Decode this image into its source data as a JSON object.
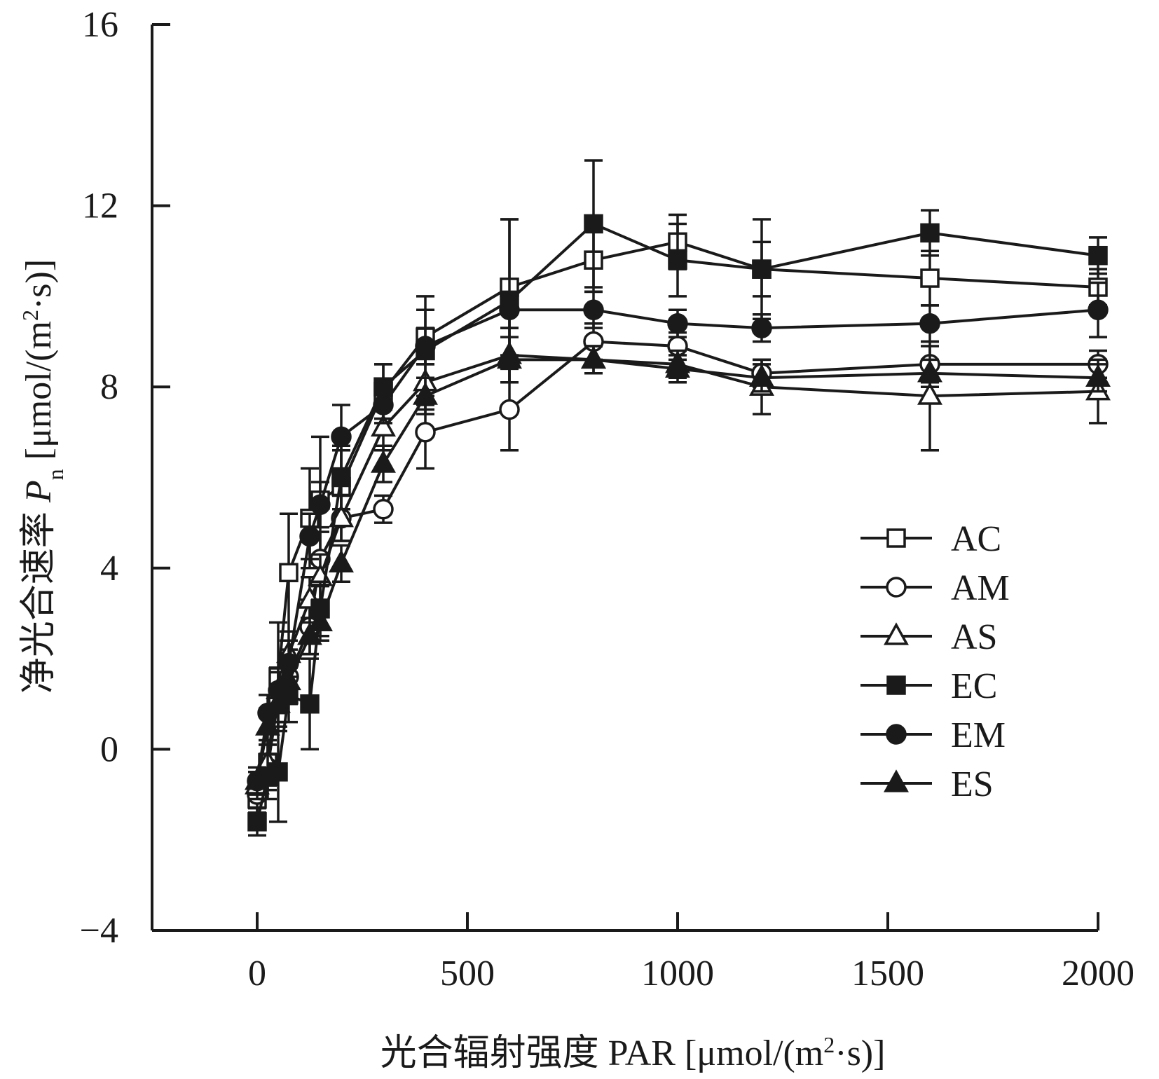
{
  "chart_data": {
    "type": "line",
    "title": "",
    "xlabel": "光合辐射强度 PAR [μmol/(m²·s)]",
    "xlabel_parts": {
      "main": "光合辐射强度 PAR [μmol/(m",
      "sup": "2",
      "tail": "·s)]"
    },
    "ylabel": "净光合速率 Pn [μmol/(m²·s)]",
    "ylabel_parts": {
      "main": "净光合速率 ",
      "var": "P",
      "sub": "n",
      "unit": " [μmol/(m",
      "sup": "2",
      "tail": "·s)]"
    },
    "xlim": [
      -250,
      2000
    ],
    "ylim": [
      -4,
      16
    ],
    "xticks": [
      0,
      500,
      1000,
      1500,
      2000
    ],
    "xtick_labels": [
      "0",
      "500",
      "1000",
      "1500",
      "2000"
    ],
    "yticks": [
      -4,
      0,
      4,
      8,
      12,
      16
    ],
    "ytick_labels": [
      "−4",
      "0",
      "4",
      "8",
      "12",
      "16"
    ],
    "grid": false,
    "legend_position": "right-middle",
    "series": [
      {
        "name": "AC",
        "marker": "square",
        "filled": false,
        "x": [
          0,
          25,
          50,
          75,
          125,
          150,
          200,
          300,
          400,
          600,
          800,
          1000,
          1200,
          1600,
          2000
        ],
        "y": [
          -1.1,
          -0.3,
          1.6,
          3.9,
          5.1,
          5.5,
          5.8,
          7.9,
          9.1,
          10.2,
          10.8,
          11.2,
          10.6,
          10.4,
          10.2
        ],
        "err": [
          0.3,
          0.5,
          1.2,
          1.3,
          1.1,
          1.4,
          0.8,
          0.6,
          0.6,
          1.5,
          0.7,
          0.6,
          0.6,
          0.6,
          0.4
        ]
      },
      {
        "name": "AM",
        "marker": "circle",
        "filled": false,
        "x": [
          0,
          25,
          50,
          75,
          125,
          150,
          200,
          300,
          400,
          600,
          800,
          1000,
          1200,
          1600,
          2000
        ],
        "y": [
          -1.0,
          -0.4,
          1.1,
          1.6,
          2.7,
          4.2,
          5.1,
          5.3,
          7.0,
          7.5,
          9.0,
          8.9,
          8.3,
          8.5,
          8.5
        ],
        "err": [
          0.3,
          0.5,
          0.6,
          0.6,
          0.6,
          0.6,
          0.5,
          0.3,
          0.8,
          0.9,
          0.4,
          0.3,
          0.3,
          0.4,
          0.3
        ]
      },
      {
        "name": "AS",
        "marker": "triangle",
        "filled": false,
        "x": [
          0,
          25,
          50,
          75,
          125,
          150,
          200,
          300,
          400,
          600,
          800,
          1000,
          1200,
          1600,
          2000
        ],
        "y": [
          -0.8,
          -0.3,
          1.3,
          2.1,
          3.3,
          3.8,
          5.1,
          7.1,
          8.1,
          8.7,
          8.6,
          8.5,
          8.0,
          7.8,
          7.9
        ],
        "err": [
          0.3,
          0.4,
          0.5,
          0.5,
          0.5,
          0.5,
          0.5,
          0.5,
          0.6,
          0.6,
          0.3,
          0.3,
          0.6,
          1.2,
          0.7
        ]
      },
      {
        "name": "EC",
        "marker": "square",
        "filled": true,
        "x": [
          0,
          25,
          50,
          75,
          125,
          150,
          200,
          300,
          400,
          600,
          800,
          1000,
          1200,
          1600,
          2000
        ],
        "y": [
          -1.6,
          -0.6,
          -0.5,
          1.2,
          1.0,
          3.1,
          6.0,
          8.0,
          8.8,
          9.9,
          11.6,
          10.8,
          10.6,
          11.4,
          10.9
        ],
        "err": [
          0.3,
          0.5,
          1.1,
          0.6,
          1.0,
          0.6,
          0.7,
          0.5,
          1.2,
          1.8,
          1.4,
          0.8,
          1.1,
          0.5,
          0.4
        ]
      },
      {
        "name": "EM",
        "marker": "circle",
        "filled": true,
        "x": [
          0,
          25,
          50,
          75,
          125,
          150,
          200,
          300,
          400,
          600,
          800,
          1000,
          1200,
          1600,
          2000
        ],
        "y": [
          -0.7,
          0.8,
          1.3,
          1.9,
          4.7,
          5.4,
          6.9,
          7.6,
          8.9,
          9.7,
          9.7,
          9.4,
          9.3,
          9.4,
          9.7
        ],
        "err": [
          0.3,
          0.4,
          0.5,
          0.5,
          0.5,
          0.5,
          0.7,
          0.4,
          0.4,
          0.4,
          0.4,
          0.3,
          0.3,
          0.4,
          0.6
        ]
      },
      {
        "name": "ES",
        "marker": "triangle",
        "filled": true,
        "x": [
          0,
          25,
          50,
          75,
          125,
          150,
          200,
          300,
          400,
          600,
          800,
          1000,
          1200,
          1600,
          2000
        ],
        "y": [
          -0.7,
          0.5,
          1.0,
          1.5,
          2.5,
          2.8,
          4.1,
          6.3,
          7.8,
          8.6,
          8.6,
          8.4,
          8.2,
          8.3,
          8.2
        ],
        "err": [
          0.3,
          0.4,
          0.4,
          0.4,
          0.4,
          0.4,
          0.4,
          0.4,
          0.4,
          0.5,
          0.3,
          0.3,
          0.3,
          0.3,
          0.3
        ]
      }
    ]
  }
}
